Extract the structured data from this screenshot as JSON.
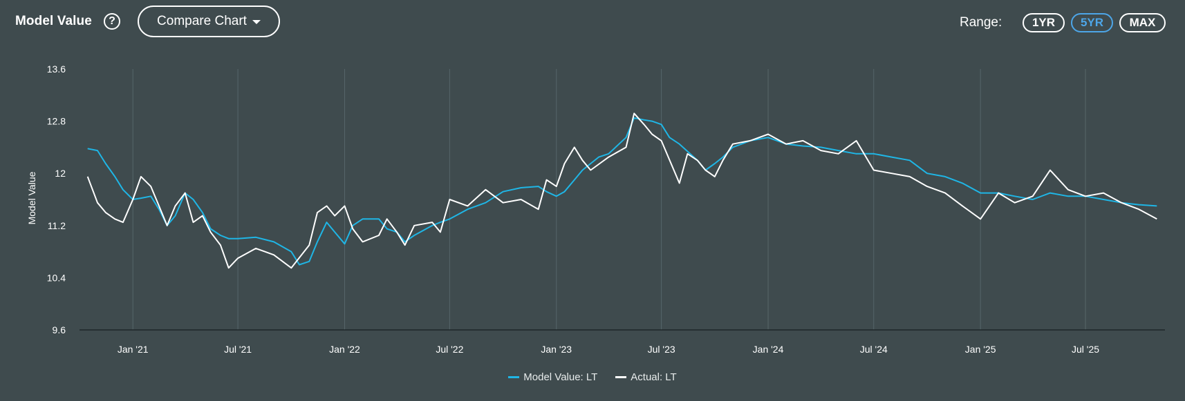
{
  "header": {
    "title": "Model Value",
    "help_glyph": "?",
    "compare_label": "Compare Chart",
    "range_label": "Range:",
    "ranges": [
      {
        "label": "1YR",
        "active": false
      },
      {
        "label": "5YR",
        "active": true
      },
      {
        "label": "MAX",
        "active": false
      }
    ]
  },
  "colors": {
    "background": "#3f4b4e",
    "model": "#1fb6e6",
    "actual": "#ffffff",
    "active_range": "#4da6e8"
  },
  "chart_data": {
    "type": "line",
    "title": "",
    "xlabel": "",
    "ylabel": "Model Value",
    "xlim": [
      "2020-10-01",
      "2025-11-15"
    ],
    "ylim": [
      9.6,
      13.6
    ],
    "yticks": [
      "9.6",
      "10.4",
      "11.2",
      "12",
      "12.8",
      "13.6"
    ],
    "ytick_values": [
      9.6,
      10.4,
      11.2,
      12.0,
      12.8,
      13.6
    ],
    "xticks": [
      {
        "label": "Jan '21",
        "date": "2021-01-01"
      },
      {
        "label": "Jul '21",
        "date": "2021-07-01"
      },
      {
        "label": "Jan '22",
        "date": "2022-01-01"
      },
      {
        "label": "Jul '22",
        "date": "2022-07-01"
      },
      {
        "label": "Jan '23",
        "date": "2023-01-01"
      },
      {
        "label": "Jul '23",
        "date": "2023-07-01"
      },
      {
        "label": "Jan '24",
        "date": "2024-01-01"
      },
      {
        "label": "Jul '24",
        "date": "2024-07-01"
      },
      {
        "label": "Jan '25",
        "date": "2025-01-01"
      },
      {
        "label": "Jul '25",
        "date": "2025-07-01"
      }
    ],
    "grid": "vertical",
    "legend_position": "bottom-center",
    "series": [
      {
        "name": "Model Value: LT",
        "color": "#1fb6e6",
        "points": [
          [
            "2020-10-15",
            12.38
          ],
          [
            "2020-11-01",
            12.35
          ],
          [
            "2020-11-15",
            12.15
          ],
          [
            "2020-12-01",
            11.95
          ],
          [
            "2020-12-15",
            11.75
          ],
          [
            "2021-01-01",
            11.6
          ],
          [
            "2021-01-15",
            11.62
          ],
          [
            "2021-02-01",
            11.65
          ],
          [
            "2021-02-15",
            11.45
          ],
          [
            "2021-03-01",
            11.2
          ],
          [
            "2021-03-15",
            11.35
          ],
          [
            "2021-04-01",
            11.7
          ],
          [
            "2021-04-15",
            11.6
          ],
          [
            "2021-05-01",
            11.4
          ],
          [
            "2021-05-15",
            11.15
          ],
          [
            "2021-06-01",
            11.05
          ],
          [
            "2021-06-15",
            11.0
          ],
          [
            "2021-07-01",
            11.0
          ],
          [
            "2021-08-01",
            11.02
          ],
          [
            "2021-09-01",
            10.95
          ],
          [
            "2021-10-01",
            10.8
          ],
          [
            "2021-10-15",
            10.6
          ],
          [
            "2021-11-01",
            10.65
          ],
          [
            "2021-11-15",
            10.95
          ],
          [
            "2021-12-01",
            11.25
          ],
          [
            "2021-12-15",
            11.1
          ],
          [
            "2022-01-01",
            10.92
          ],
          [
            "2022-01-15",
            11.2
          ],
          [
            "2022-02-01",
            11.3
          ],
          [
            "2022-03-01",
            11.3
          ],
          [
            "2022-03-15",
            11.15
          ],
          [
            "2022-04-01",
            11.1
          ],
          [
            "2022-04-15",
            10.95
          ],
          [
            "2022-05-01",
            11.05
          ],
          [
            "2022-06-01",
            11.2
          ],
          [
            "2022-06-15",
            11.25
          ],
          [
            "2022-07-01",
            11.3
          ],
          [
            "2022-08-01",
            11.45
          ],
          [
            "2022-09-01",
            11.55
          ],
          [
            "2022-10-01",
            11.72
          ],
          [
            "2022-11-01",
            11.78
          ],
          [
            "2022-12-01",
            11.8
          ],
          [
            "2022-12-15",
            11.72
          ],
          [
            "2023-01-01",
            11.65
          ],
          [
            "2023-01-15",
            11.72
          ],
          [
            "2023-02-01",
            11.9
          ],
          [
            "2023-02-15",
            12.05
          ],
          [
            "2023-03-01",
            12.15
          ],
          [
            "2023-03-15",
            12.25
          ],
          [
            "2023-04-01",
            12.3
          ],
          [
            "2023-05-01",
            12.55
          ],
          [
            "2023-05-15",
            12.85
          ],
          [
            "2023-06-01",
            12.82
          ],
          [
            "2023-06-15",
            12.8
          ],
          [
            "2023-07-01",
            12.75
          ],
          [
            "2023-07-15",
            12.55
          ],
          [
            "2023-08-01",
            12.45
          ],
          [
            "2023-09-01",
            12.2
          ],
          [
            "2023-09-15",
            12.05
          ],
          [
            "2023-10-01",
            12.15
          ],
          [
            "2023-10-15",
            12.25
          ],
          [
            "2023-11-01",
            12.4
          ],
          [
            "2023-12-01",
            12.5
          ],
          [
            "2024-01-01",
            12.55
          ],
          [
            "2024-02-01",
            12.45
          ],
          [
            "2024-03-01",
            12.42
          ],
          [
            "2024-04-01",
            12.4
          ],
          [
            "2024-05-01",
            12.35
          ],
          [
            "2024-06-01",
            12.3
          ],
          [
            "2024-07-01",
            12.3
          ],
          [
            "2024-08-01",
            12.25
          ],
          [
            "2024-09-01",
            12.2
          ],
          [
            "2024-10-01",
            12.0
          ],
          [
            "2024-11-01",
            11.95
          ],
          [
            "2024-12-01",
            11.85
          ],
          [
            "2025-01-01",
            11.7
          ],
          [
            "2025-02-01",
            11.7
          ],
          [
            "2025-03-01",
            11.65
          ],
          [
            "2025-04-01",
            11.6
          ],
          [
            "2025-05-01",
            11.7
          ],
          [
            "2025-06-01",
            11.65
          ],
          [
            "2025-07-01",
            11.65
          ],
          [
            "2025-08-01",
            11.6
          ],
          [
            "2025-09-01",
            11.55
          ],
          [
            "2025-10-01",
            11.52
          ],
          [
            "2025-11-01",
            11.5
          ]
        ]
      },
      {
        "name": "Actual: LT",
        "color": "#ffffff",
        "points": [
          [
            "2020-10-15",
            11.95
          ],
          [
            "2020-11-01",
            11.55
          ],
          [
            "2020-11-15",
            11.4
          ],
          [
            "2020-12-01",
            11.3
          ],
          [
            "2020-12-15",
            11.25
          ],
          [
            "2021-01-01",
            11.6
          ],
          [
            "2021-01-15",
            11.95
          ],
          [
            "2021-02-01",
            11.8
          ],
          [
            "2021-02-15",
            11.5
          ],
          [
            "2021-03-01",
            11.2
          ],
          [
            "2021-03-15",
            11.5
          ],
          [
            "2021-04-01",
            11.7
          ],
          [
            "2021-04-15",
            11.25
          ],
          [
            "2021-05-01",
            11.35
          ],
          [
            "2021-05-15",
            11.1
          ],
          [
            "2021-06-01",
            10.9
          ],
          [
            "2021-06-15",
            10.55
          ],
          [
            "2021-07-01",
            10.7
          ],
          [
            "2021-08-01",
            10.85
          ],
          [
            "2021-09-01",
            10.75
          ],
          [
            "2021-10-01",
            10.55
          ],
          [
            "2021-11-01",
            10.9
          ],
          [
            "2021-11-15",
            11.4
          ],
          [
            "2021-12-01",
            11.5
          ],
          [
            "2021-12-15",
            11.35
          ],
          [
            "2022-01-01",
            11.5
          ],
          [
            "2022-01-15",
            11.15
          ],
          [
            "2022-02-01",
            10.95
          ],
          [
            "2022-03-01",
            11.05
          ],
          [
            "2022-03-15",
            11.3
          ],
          [
            "2022-04-01",
            11.1
          ],
          [
            "2022-04-15",
            10.9
          ],
          [
            "2022-05-01",
            11.2
          ],
          [
            "2022-06-01",
            11.25
          ],
          [
            "2022-06-15",
            11.1
          ],
          [
            "2022-07-01",
            11.6
          ],
          [
            "2022-08-01",
            11.5
          ],
          [
            "2022-09-01",
            11.75
          ],
          [
            "2022-10-01",
            11.55
          ],
          [
            "2022-11-01",
            11.6
          ],
          [
            "2022-12-01",
            11.45
          ],
          [
            "2022-12-15",
            11.9
          ],
          [
            "2023-01-01",
            11.8
          ],
          [
            "2023-01-15",
            12.15
          ],
          [
            "2023-02-01",
            12.4
          ],
          [
            "2023-02-15",
            12.2
          ],
          [
            "2023-03-01",
            12.05
          ],
          [
            "2023-04-01",
            12.25
          ],
          [
            "2023-05-01",
            12.4
          ],
          [
            "2023-05-15",
            12.92
          ],
          [
            "2023-06-01",
            12.75
          ],
          [
            "2023-06-15",
            12.6
          ],
          [
            "2023-07-01",
            12.5
          ],
          [
            "2023-08-01",
            11.85
          ],
          [
            "2023-08-15",
            12.3
          ],
          [
            "2023-09-01",
            12.2
          ],
          [
            "2023-09-15",
            12.05
          ],
          [
            "2023-10-01",
            11.95
          ],
          [
            "2023-10-15",
            12.2
          ],
          [
            "2023-11-01",
            12.45
          ],
          [
            "2023-12-01",
            12.5
          ],
          [
            "2024-01-01",
            12.6
          ],
          [
            "2024-02-01",
            12.45
          ],
          [
            "2024-03-01",
            12.5
          ],
          [
            "2024-04-01",
            12.35
          ],
          [
            "2024-05-01",
            12.3
          ],
          [
            "2024-06-01",
            12.5
          ],
          [
            "2024-07-01",
            12.05
          ],
          [
            "2024-08-01",
            12.0
          ],
          [
            "2024-09-01",
            11.95
          ],
          [
            "2024-10-01",
            11.8
          ],
          [
            "2024-11-01",
            11.7
          ],
          [
            "2024-12-01",
            11.5
          ],
          [
            "2025-01-01",
            11.3
          ],
          [
            "2025-02-01",
            11.7
          ],
          [
            "2025-03-01",
            11.55
          ],
          [
            "2025-04-01",
            11.65
          ],
          [
            "2025-05-01",
            12.05
          ],
          [
            "2025-06-01",
            11.75
          ],
          [
            "2025-07-01",
            11.65
          ],
          [
            "2025-08-01",
            11.7
          ],
          [
            "2025-09-01",
            11.55
          ],
          [
            "2025-10-01",
            11.45
          ],
          [
            "2025-11-01",
            11.3
          ]
        ]
      }
    ]
  }
}
